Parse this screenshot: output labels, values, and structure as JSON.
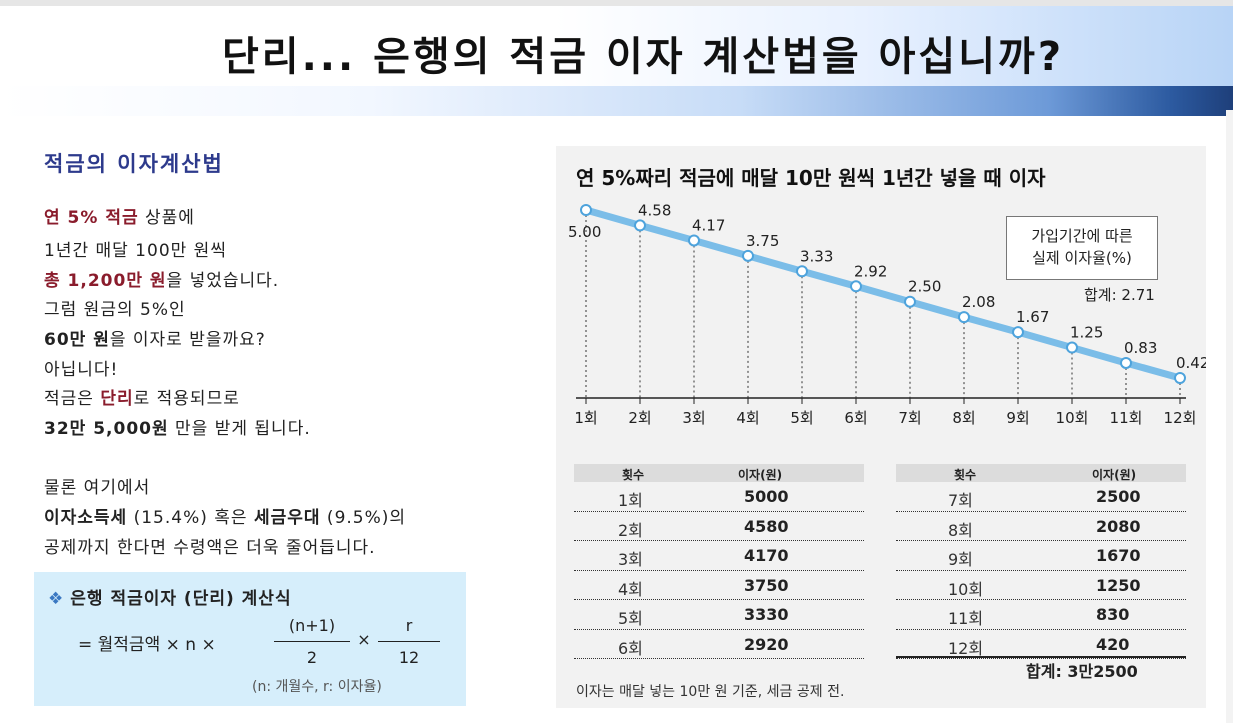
{
  "title": "단리... 은행의 적금 이자 계산법을 아십니까?",
  "left": {
    "heading": "적금의 이자계산법",
    "l1_a": "연 5% 적금",
    "l1_b": " 상품에",
    "l2": "1년간 매달 100만 원씩",
    "l3_a": "총 1,200만 원",
    "l3_b": "을 넣었습니다.",
    "l4": "그럼 원금의 5%인",
    "l5_a": "60만 원",
    "l5_b": "을 이자로 받을까요?",
    "l6": "아닙니다!",
    "l7_a": "적금은 ",
    "l7_b": "단리",
    "l7_c": "로 적용되므로",
    "l8_a": "32만 5,000원",
    "l8_b": " 만을 받게 됩니다.",
    "l9": "물론 여기에서",
    "l10_a": "이자소득세",
    "l10_b": " (15.4%) 혹은 ",
    "l10_c": "세금우대",
    "l10_d": " (9.5%)의",
    "l11": "공제까지 한다면 수령액은 더욱 줄어듭니다."
  },
  "formula": {
    "title": "은행 적금이자 (단리) 계산식",
    "main": "= 월적금액 × n ×",
    "times": "×",
    "num1": "(n+1)",
    "den1": "2",
    "num2": "r",
    "den2": "12",
    "note": "(n: 개월수, r: 이자율)"
  },
  "chart_data": {
    "type": "line",
    "title": "연 5%짜리 적금에 매달 10만 원씩 1년간 넣을 때 이자",
    "categories": [
      "1회",
      "2회",
      "3회",
      "4회",
      "5회",
      "6회",
      "7회",
      "8회",
      "9회",
      "10회",
      "11회",
      "12회"
    ],
    "series": [
      {
        "values": [
          5.0,
          4.58,
          4.17,
          3.75,
          3.33,
          2.92,
          2.5,
          2.08,
          1.67,
          1.25,
          0.83,
          0.42
        ]
      }
    ],
    "value_labels": [
      "5.00",
      "4.58",
      "4.17",
      "3.75",
      "3.33",
      "2.92",
      "2.50",
      "2.08",
      "1.67",
      "1.25",
      "0.83",
      "0.42"
    ],
    "legend_line1": "가입기간에 따른",
    "legend_line2": "실제 이자율(%)",
    "total": "합계: 2.71",
    "line_color": "#7bbde8",
    "ylim": [
      0,
      5.2
    ]
  },
  "table": {
    "col1": "횟수",
    "col2": "이자(원)",
    "left_rows": [
      {
        "n": "1회",
        "v": "5000"
      },
      {
        "n": "2회",
        "v": "4580"
      },
      {
        "n": "3회",
        "v": "4170"
      },
      {
        "n": "4회",
        "v": "3750"
      },
      {
        "n": "5회",
        "v": "3330"
      },
      {
        "n": "6회",
        "v": "2920"
      }
    ],
    "right_rows": [
      {
        "n": "7회",
        "v": "2500"
      },
      {
        "n": "8회",
        "v": "2080"
      },
      {
        "n": "9회",
        "v": "1670"
      },
      {
        "n": "10회",
        "v": "1250"
      },
      {
        "n": "11회",
        "v": "830"
      },
      {
        "n": "12회",
        "v": "420"
      }
    ],
    "sum": "합계: 3만2500"
  },
  "footnote": "이자는 매달 넣는 10만 원 기준, 세금 공제 전."
}
